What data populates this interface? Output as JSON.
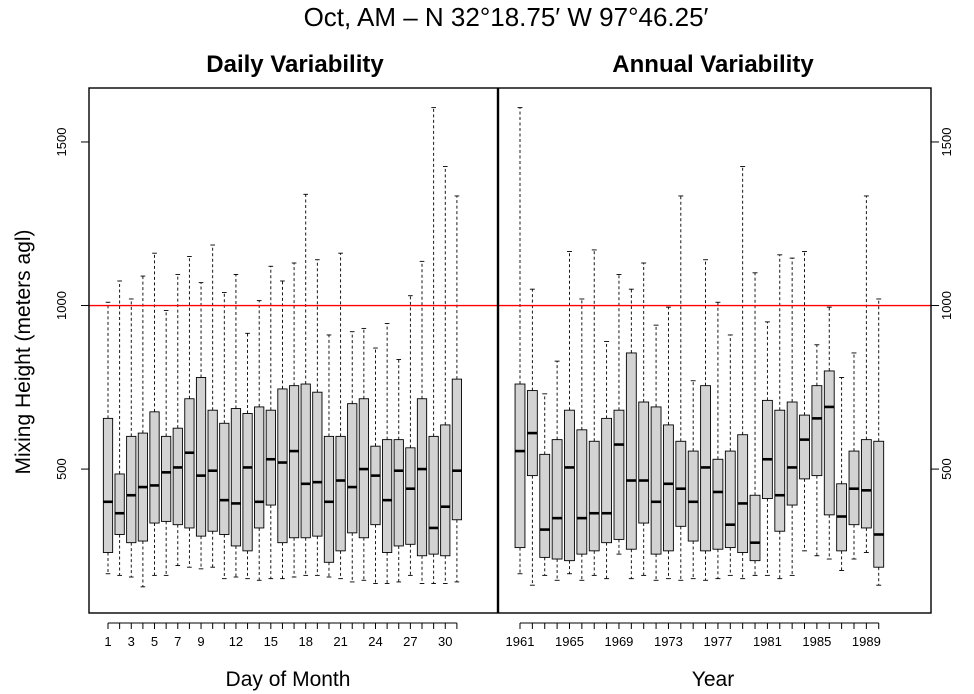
{
  "chart_data": {
    "type": "boxplot",
    "title": "Oct, AM – N 32°18.75′ W 97°46.25′",
    "ylabel": "Mixing Height (meters agl)",
    "ylim": [
      60,
      1665
    ],
    "y_ticks": [
      500,
      1000,
      1500
    ],
    "reference_line": {
      "value": 1000,
      "color": "#ff0000"
    },
    "box_fill": "#d3d3d3",
    "panels": [
      {
        "name": "daily",
        "subtitle": "Daily Variability",
        "xlabel": "Day of Month",
        "categories": [
          1,
          2,
          3,
          4,
          5,
          6,
          7,
          8,
          9,
          10,
          11,
          12,
          13,
          14,
          15,
          16,
          17,
          18,
          19,
          20,
          21,
          22,
          23,
          24,
          25,
          26,
          27,
          28,
          29,
          30,
          31
        ],
        "tick_labels": [
          "1",
          "3",
          "5",
          "7",
          "9",
          "12",
          "15",
          "18",
          "21",
          "24",
          "27",
          "30"
        ],
        "boxes": [
          [
            180,
            245,
            400,
            655,
            1010
          ],
          [
            175,
            300,
            365,
            485,
            1075
          ],
          [
            170,
            275,
            420,
            600,
            1020
          ],
          [
            140,
            280,
            445,
            610,
            1090
          ],
          [
            175,
            335,
            450,
            675,
            1160
          ],
          [
            175,
            340,
            490,
            600,
            985
          ],
          [
            205,
            330,
            505,
            625,
            1095
          ],
          [
            200,
            320,
            550,
            715,
            1150
          ],
          [
            195,
            295,
            480,
            780,
            1070
          ],
          [
            200,
            310,
            495,
            680,
            1185
          ],
          [
            165,
            300,
            405,
            640,
            1040
          ],
          [
            170,
            265,
            395,
            685,
            1095
          ],
          [
            165,
            250,
            505,
            670,
            915
          ],
          [
            160,
            320,
            400,
            690,
            1015
          ],
          [
            165,
            390,
            530,
            680,
            1120
          ],
          [
            165,
            275,
            520,
            745,
            1075
          ],
          [
            170,
            290,
            555,
            755,
            1130
          ],
          [
            175,
            290,
            455,
            760,
            1340
          ],
          [
            175,
            295,
            460,
            735,
            1140
          ],
          [
            170,
            215,
            400,
            600,
            910
          ],
          [
            165,
            250,
            465,
            600,
            1160
          ],
          [
            155,
            305,
            445,
            700,
            920
          ],
          [
            160,
            290,
            500,
            715,
            930
          ],
          [
            150,
            330,
            480,
            570,
            870
          ],
          [
            150,
            245,
            405,
            590,
            945
          ],
          [
            155,
            265,
            495,
            590,
            835
          ],
          [
            175,
            270,
            440,
            565,
            1030
          ],
          [
            150,
            235,
            500,
            715,
            1135
          ],
          [
            150,
            240,
            320,
            600,
            1605
          ],
          [
            150,
            235,
            385,
            635,
            1425
          ],
          [
            155,
            345,
            495,
            775,
            1335
          ]
        ]
      },
      {
        "name": "annual",
        "subtitle": "Annual Variability",
        "xlabel": "Year",
        "categories": [
          1961,
          1962,
          1963,
          1964,
          1965,
          1966,
          1967,
          1968,
          1969,
          1970,
          1971,
          1972,
          1973,
          1974,
          1975,
          1976,
          1977,
          1978,
          1979,
          1980,
          1981,
          1982,
          1983,
          1984,
          1985,
          1986,
          1987,
          1988,
          1989,
          1990
        ],
        "tick_labels": [
          "1961",
          "1965",
          "1969",
          "1973",
          "1977",
          "1981",
          "1985",
          "1989"
        ],
        "boxes": [
          [
            180,
            260,
            555,
            760,
            1605
          ],
          [
            145,
            480,
            610,
            740,
            1050
          ],
          [
            175,
            230,
            315,
            545,
            730
          ],
          [
            160,
            225,
            350,
            590,
            830
          ],
          [
            180,
            220,
            505,
            680,
            1165
          ],
          [
            160,
            240,
            350,
            620,
            1020
          ],
          [
            175,
            250,
            365,
            585,
            1170
          ],
          [
            165,
            275,
            365,
            655,
            890
          ],
          [
            240,
            285,
            575,
            680,
            1095
          ],
          [
            165,
            255,
            465,
            855,
            1050
          ],
          [
            175,
            335,
            465,
            705,
            1130
          ],
          [
            160,
            240,
            400,
            690,
            940
          ],
          [
            165,
            250,
            455,
            635,
            995
          ],
          [
            160,
            325,
            440,
            585,
            1335
          ],
          [
            165,
            280,
            400,
            555,
            770
          ],
          [
            160,
            250,
            505,
            755,
            1140
          ],
          [
            165,
            255,
            430,
            530,
            1010
          ],
          [
            175,
            260,
            330,
            555,
            910
          ],
          [
            165,
            245,
            395,
            605,
            1425
          ],
          [
            175,
            220,
            275,
            420,
            1100
          ],
          [
            175,
            410,
            530,
            710,
            950
          ],
          [
            165,
            310,
            420,
            680,
            1155
          ],
          [
            175,
            390,
            505,
            705,
            1145
          ],
          [
            250,
            470,
            590,
            665,
            1165
          ],
          [
            235,
            480,
            655,
            755,
            880
          ],
          [
            225,
            360,
            690,
            800,
            995
          ],
          [
            190,
            250,
            355,
            455,
            780
          ],
          [
            225,
            330,
            440,
            555,
            855
          ],
          [
            245,
            320,
            435,
            590,
            1335
          ],
          [
            145,
            200,
            300,
            585,
            1020
          ]
        ]
      }
    ]
  }
}
